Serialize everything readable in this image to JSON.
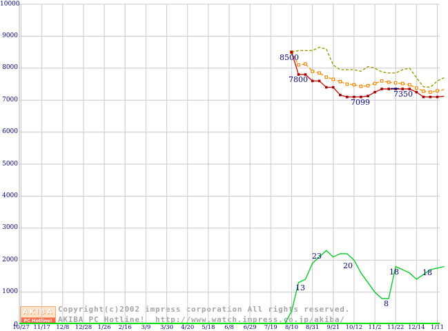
{
  "watermark": {
    "logo_top": "AKIBA",
    "logo_bottom": "PC Hotline!",
    "copyright_line1": "Copyright(c)2002 impress corporation All rights reserved.",
    "copyright_line2": "AKIBA PC Hotline!  http://www.watch.impress.co.jp/akiba/"
  },
  "chart_data": {
    "type": "line",
    "grid": true,
    "colors": {
      "grid": "#c9c9c9",
      "axis": "#b4b4b4",
      "baseline_green": "#00dd00",
      "tick_text": "#000080"
    },
    "y_axis": {
      "min": 0,
      "max": 10000,
      "step": 1000,
      "tick_labels": [
        "0",
        "1000",
        "2000",
        "3000",
        "4000",
        "5000",
        "6000",
        "7000",
        "8000",
        "9000",
        "10000"
      ]
    },
    "x_axis": {
      "tick_labels": [
        "10/27",
        "11/17",
        "12/8",
        "12/28",
        "1/26",
        "2/16",
        "3/9",
        "3/30",
        "4/20",
        "5/18",
        "6/8",
        "6/29",
        "7/19",
        "8/10",
        "8/31",
        "9/21",
        "10/12",
        "11/2",
        "11/22",
        "12/14",
        "1/11"
      ],
      "slots_per_tick": 3
    },
    "series": [
      {
        "name": "series-olive",
        "color": "#9a9a00",
        "style": "dashed",
        "marker": "none",
        "start_slot": 39,
        "values": [
          8500,
          8550,
          8550,
          8550,
          8650,
          8600,
          8100,
          7950,
          7950,
          7950,
          7900,
          8050,
          8000,
          7880,
          7850,
          7850,
          7950,
          8000,
          7700,
          7420,
          7400,
          7600,
          7700
        ]
      },
      {
        "name": "series-orange",
        "color": "#ff9500",
        "style": "dashed",
        "marker": "open-square",
        "marker_color": "#f08000",
        "start_slot": 39,
        "values": [
          8500,
          8100,
          8130,
          7900,
          7850,
          7720,
          7650,
          7580,
          7500,
          7480,
          7430,
          7450,
          7520,
          7600,
          7560,
          7540,
          7520,
          7480,
          7380,
          7280,
          7250,
          7290,
          7330
        ]
      },
      {
        "name": "series-red",
        "color": "#cc1111",
        "style": "solid",
        "marker": "filled-square",
        "marker_color": "#a00000",
        "start_slot": 39,
        "values": [
          8500,
          7800,
          7800,
          7600,
          7600,
          7400,
          7400,
          7160,
          7099,
          7099,
          7099,
          7130,
          7250,
          7350,
          7350,
          7350,
          7350,
          7350,
          7250,
          7100,
          7100,
          7100,
          7120
        ]
      },
      {
        "name": "series-green",
        "color": "#00cc22",
        "style": "solid",
        "marker": "none",
        "start_slot": 38,
        "values": [
          0,
          400,
          1300,
          1400,
          1900,
          2100,
          2300,
          2100,
          2200,
          2200,
          2000,
          1600,
          1300,
          1000,
          800,
          800,
          1800,
          1700,
          1600,
          1400,
          1550,
          1700,
          1750,
          1800
        ]
      }
    ],
    "annotations": [
      {
        "text": "8500",
        "x": 405,
        "y": 78
      },
      {
        "text": "7800",
        "x": 418,
        "y": 110
      },
      {
        "text": "7099",
        "x": 508,
        "y": 143
      },
      {
        "text": "7350",
        "x": 570,
        "y": 131
      },
      {
        "text": "13",
        "x": 428,
        "y": 412
      },
      {
        "text": "23",
        "x": 452,
        "y": 366
      },
      {
        "text": "20",
        "x": 497,
        "y": 380
      },
      {
        "text": "8",
        "x": 556,
        "y": 435
      },
      {
        "text": "18",
        "x": 564,
        "y": 389
      },
      {
        "text": "18",
        "x": 612,
        "y": 390
      }
    ],
    "overlay_segment": {
      "x1": 566,
      "y1": 128.5,
      "x2": 578,
      "y2": 128.5,
      "color": "#000080"
    }
  }
}
